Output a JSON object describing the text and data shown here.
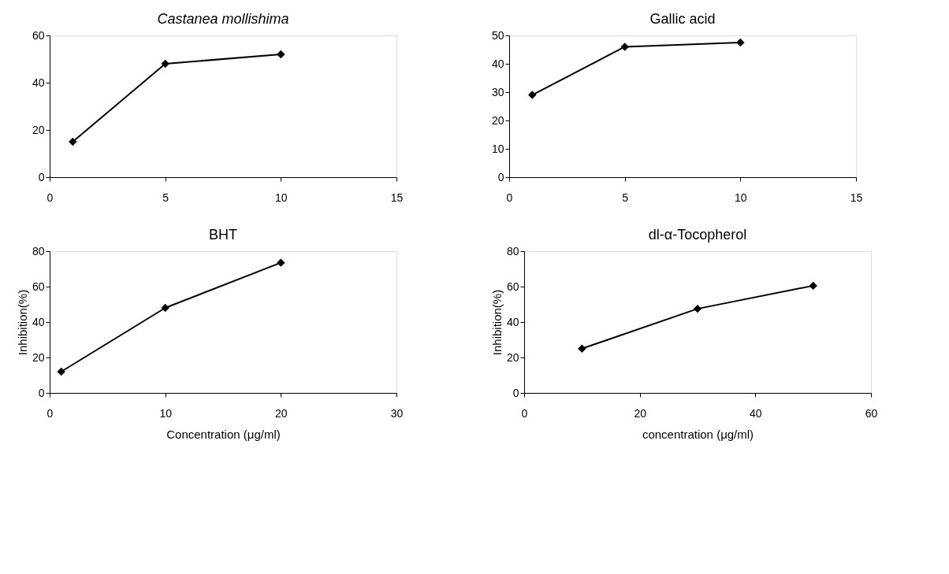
{
  "chart_data": [
    {
      "type": "line",
      "title": "Castanea mollishima",
      "x": [
        1,
        5,
        10
      ],
      "series": [
        {
          "color": "#000000",
          "values": [
            15,
            48,
            52
          ]
        }
      ],
      "xlim": [
        0,
        15
      ],
      "xticks": [
        0,
        5,
        10,
        15
      ],
      "ylim": [
        0,
        60
      ],
      "yticks": [
        0,
        20,
        40,
        60
      ],
      "marker": "diamond",
      "line_style": "solid"
    },
    {
      "type": "line",
      "title": "Gallic acid",
      "x": [
        1,
        5,
        10
      ],
      "series": [
        {
          "color": "#000000",
          "values": [
            29,
            46,
            47.5
          ]
        }
      ],
      "xlim": [
        0,
        15
      ],
      "xticks": [
        0,
        5,
        10,
        15
      ],
      "ylim": [
        0,
        50
      ],
      "yticks": [
        0,
        10,
        20,
        30,
        40,
        50
      ],
      "marker": "diamond",
      "line_style": "solid"
    },
    {
      "type": "line",
      "title": "BHT",
      "xlabel": "Concentration (μg/ml)",
      "ylabel": "Inhibition(%)",
      "x": [
        1,
        10,
        20
      ],
      "series": [
        {
          "color": "#000000",
          "values": [
            12,
            48,
            73.5
          ]
        }
      ],
      "xlim": [
        0,
        30
      ],
      "xticks": [
        0,
        10,
        20,
        30
      ],
      "ylim": [
        0,
        80
      ],
      "yticks": [
        0,
        20,
        40,
        60,
        80
      ],
      "marker": "diamond",
      "line_style": "solid"
    },
    {
      "type": "line",
      "title": "dl-α-Tocopherol",
      "xlabel": "concentration (μg/ml)",
      "ylabel": "Inhibition(%)",
      "x": [
        10,
        30,
        50
      ],
      "series": [
        {
          "color": "#000000",
          "values": [
            25,
            47.5,
            60.5
          ]
        }
      ],
      "xlim": [
        0,
        60
      ],
      "xticks": [
        0,
        20,
        40,
        60
      ],
      "ylim": [
        0,
        80
      ],
      "yticks": [
        0,
        20,
        40,
        60,
        80
      ],
      "marker": "diamond",
      "line_style": "solid"
    }
  ]
}
